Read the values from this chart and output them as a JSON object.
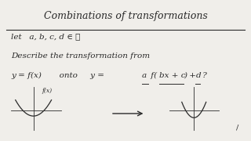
{
  "background_color": "#f0eeea",
  "title_text": "Combinations of transformations",
  "let_text": "let   a, b, c, d ∈ ℝ",
  "describe_text": "Describe the transformation from",
  "text_color": "#2a2a2a"
}
